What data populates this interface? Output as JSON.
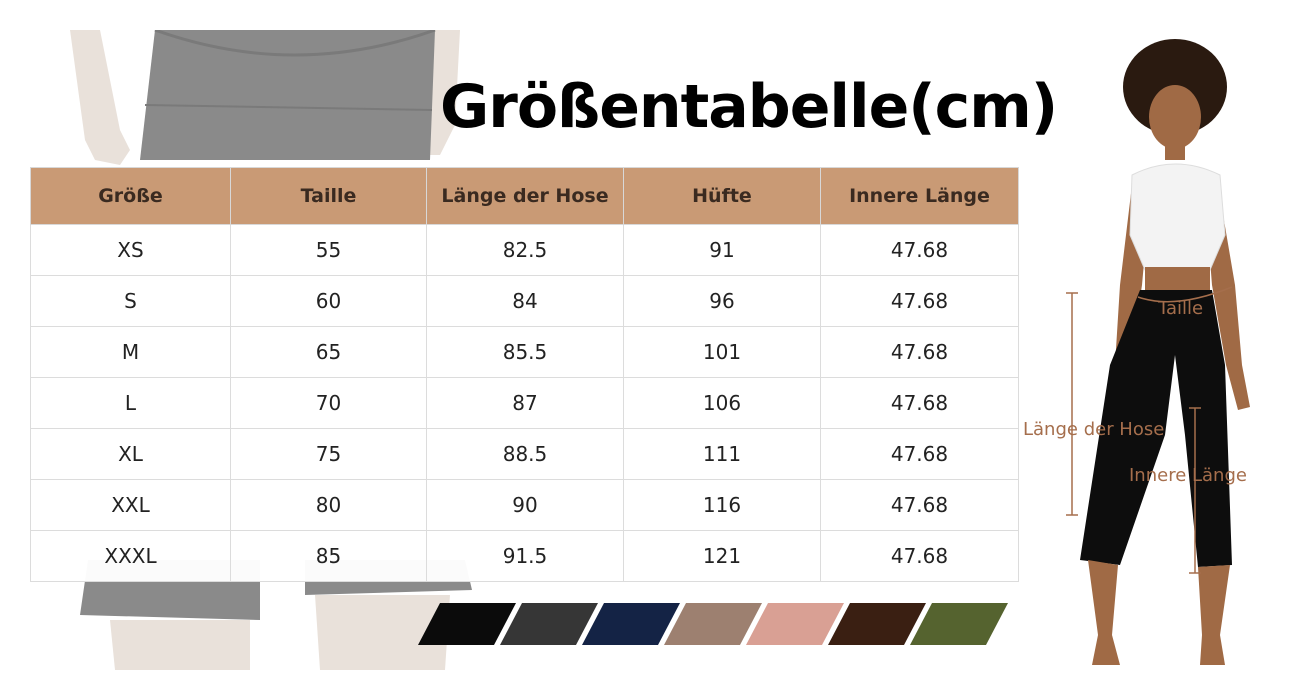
{
  "title": "Größentabelle(cm)",
  "table": {
    "headers": [
      "Größe",
      "Taille",
      "Länge der Hose",
      "Hüfte",
      "Innere Länge"
    ],
    "rows": [
      [
        "XS",
        "55",
        "82.5",
        "91",
        "47.68"
      ],
      [
        "S",
        "60",
        "84",
        "96",
        "47.68"
      ],
      [
        "M",
        "65",
        "85.5",
        "101",
        "47.68"
      ],
      [
        "L",
        "70",
        "87",
        "106",
        "47.68"
      ],
      [
        "XL",
        "75",
        "88.5",
        "111",
        "47.68"
      ],
      [
        "XXL",
        "80",
        "90",
        "116",
        "47.68"
      ],
      [
        "XXXL",
        "85",
        "91.5",
        "121",
        "47.68"
      ]
    ]
  },
  "colors": {
    "header_bg": "#c99a75",
    "callout": "#a56e4c",
    "swatches": [
      "#0b0b0b",
      "#363636",
      "#142345",
      "#9d8070",
      "#d9a094",
      "#3a1f12",
      "#55632f"
    ]
  },
  "callouts": {
    "waist": "Taille",
    "length": "Länge der Hose",
    "inseam": "Innere Länge"
  }
}
